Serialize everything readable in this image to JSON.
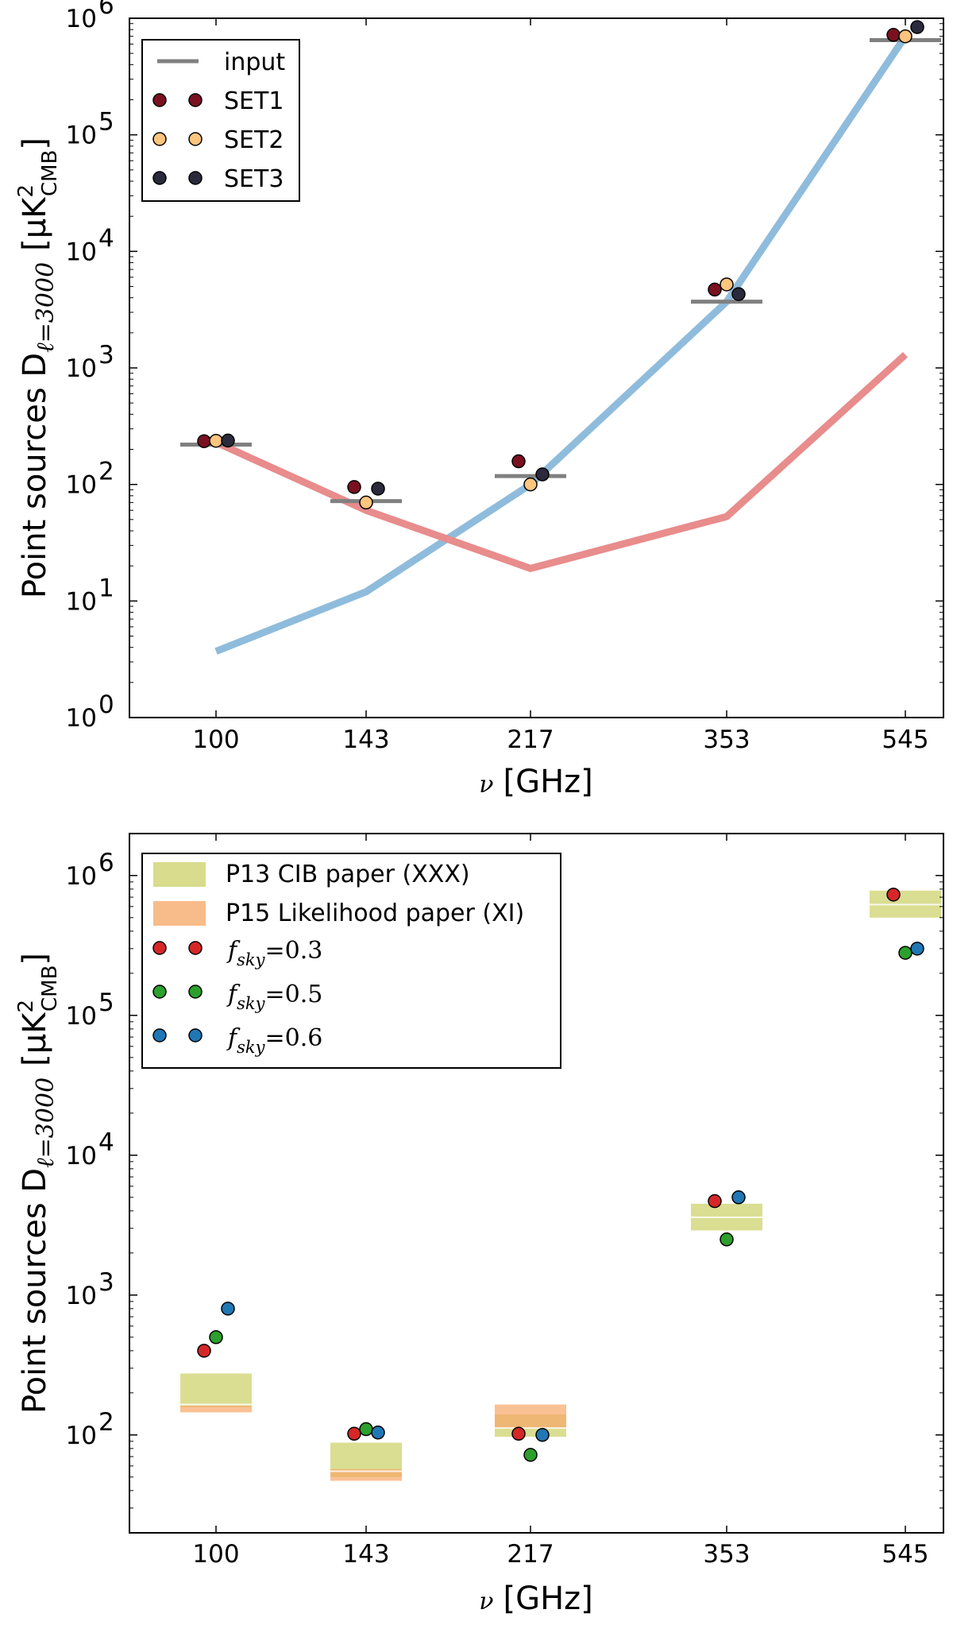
{
  "chart_data": [
    {
      "type": "scatter",
      "yscale": "log",
      "categories": [
        "100",
        "143",
        "217",
        "353",
        "545"
      ],
      "ylim_exponents": [
        0,
        6
      ],
      "ytick_labels": [
        "10",
        "10",
        "10",
        "10",
        "10",
        "10",
        "10"
      ],
      "ytick_exponents": [
        "0",
        "1",
        "2",
        "3",
        "4",
        "5",
        "6"
      ],
      "ylabel_parts": {
        "prefix": "Point  sources  D",
        "sub": "ℓ=3000",
        "unit_open": "[μK",
        "unit_sup": "2",
        "unit_sub": "CMB",
        "unit_close": "]"
      },
      "xlabel_parts": {
        "nu": "ν",
        "unit": "[GHz]"
      },
      "legend": {
        "position": "top-left",
        "entries": [
          {
            "label": "input",
            "kind": "line",
            "color": "#808080"
          },
          {
            "label": "SET1",
            "kind": "marker",
            "color": "#7b1020"
          },
          {
            "label": "SET2",
            "kind": "marker",
            "color": "#fdc57d"
          },
          {
            "label": "SET3",
            "kind": "marker",
            "color": "#2a2a3c"
          }
        ]
      },
      "curves": [
        {
          "name": "blue curve",
          "color": "#8fbcdc",
          "values": [
            3.7,
            12,
            100,
            3700,
            700000
          ]
        },
        {
          "name": "red curve",
          "color": "#e88c8c",
          "values": [
            230,
            60,
            19,
            53,
            1300
          ]
        }
      ],
      "input_values": [
        220,
        72,
        118,
        3700,
        650000
      ],
      "series": [
        {
          "name": "SET1",
          "color": "#7b1020",
          "values": [
            235,
            95,
            158,
            4700,
            720000
          ]
        },
        {
          "name": "SET2",
          "color": "#fdc57d",
          "values": [
            237,
            70,
            100,
            5200,
            700000
          ]
        },
        {
          "name": "SET3",
          "color": "#2a2a3c",
          "values": [
            238,
            92,
            122,
            4300,
            840000
          ]
        }
      ]
    },
    {
      "type": "scatter",
      "yscale": "log",
      "categories": [
        "100",
        "143",
        "217",
        "353",
        "545"
      ],
      "ylim_exponents": [
        1.3,
        6.3
      ],
      "ytick_labels": [
        "10",
        "10",
        "10",
        "10",
        "10"
      ],
      "ytick_exponents": [
        "2",
        "3",
        "4",
        "5",
        "6"
      ],
      "ylabel_parts": {
        "prefix": "Point  sources  D",
        "sub": "ℓ=3000",
        "unit_open": "[μK",
        "unit_sup": "2",
        "unit_sub": "CMB",
        "unit_close": "]"
      },
      "xlabel_parts": {
        "nu": "ν",
        "unit": "[GHz]"
      },
      "legend": {
        "position": "top-left",
        "entries": [
          {
            "label": "P13 CIB paper (XXX)",
            "kind": "patch",
            "color": "#d8dc8c"
          },
          {
            "label": "P15 Likelihood paper (XI)",
            "kind": "patch",
            "color": "#f8bb8a"
          },
          {
            "label": "f",
            "sub": "sky",
            "eq": "=0.3",
            "kind": "marker",
            "color": "#d62728"
          },
          {
            "label": "f",
            "sub": "sky",
            "eq": "=0.5",
            "kind": "marker",
            "color": "#2ca02c"
          },
          {
            "label": "f",
            "sub": "sky",
            "eq": "=0.6",
            "kind": "marker",
            "color": "#1f77b4"
          }
        ]
      },
      "p13_bands": [
        {
          "category": "100",
          "low": 158,
          "high": 275,
          "center": 165
        },
        {
          "category": "143",
          "low": 50,
          "high": 88,
          "center": 55
        },
        {
          "category": "217",
          "low": 97,
          "high": 140,
          "center": 112
        },
        {
          "category": "353",
          "low": 2900,
          "high": 4500,
          "center": 3600
        },
        {
          "category": "545",
          "low": 500000,
          "high": 780000,
          "center": 620000
        }
      ],
      "p15_bands": [
        {
          "category": "100",
          "low": 145,
          "high": 162
        },
        {
          "category": "143",
          "low": 47,
          "high": 57
        },
        {
          "category": "217",
          "low": 112,
          "high": 165
        }
      ],
      "series": [
        {
          "name": "f_sky=0.3",
          "color": "#d62728",
          "values": [
            400,
            102,
            102,
            4700,
            730000
          ]
        },
        {
          "name": "f_sky=0.5",
          "color": "#2ca02c",
          "values": [
            500,
            110,
            72,
            2500,
            280000
          ]
        },
        {
          "name": "f_sky=0.6",
          "color": "#1f77b4",
          "values": [
            800,
            104,
            100,
            5000,
            300000
          ]
        }
      ]
    }
  ]
}
